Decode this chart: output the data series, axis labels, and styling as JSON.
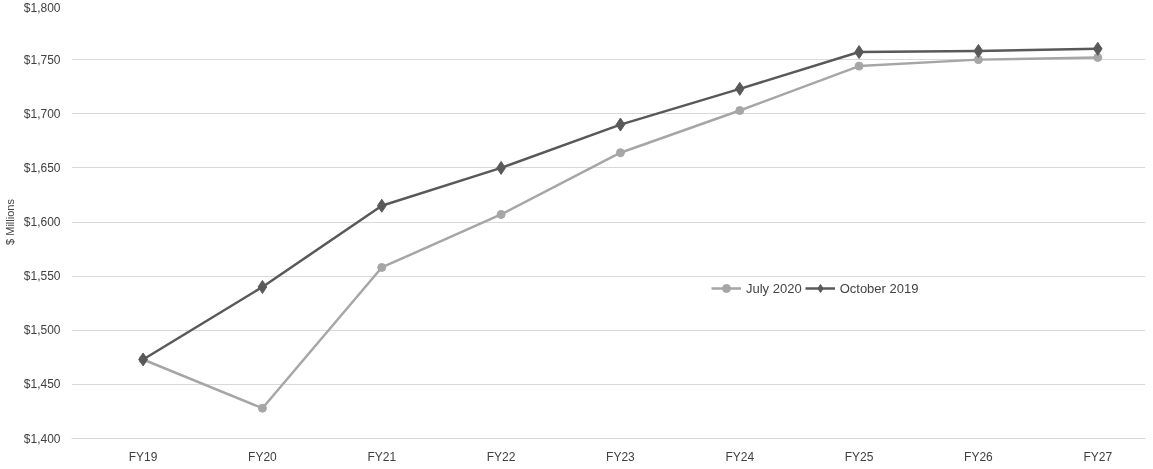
{
  "chart_data": {
    "type": "line",
    "ylabel": "$ Millions",
    "categories": [
      "FY19",
      "FY20",
      "FY21",
      "FY22",
      "FY23",
      "FY24",
      "FY25",
      "FY26",
      "FY27"
    ],
    "series": [
      {
        "name": "July 2020",
        "color": "#a6a6a6",
        "marker": "circle",
        "values": [
          1473,
          1428,
          1558,
          1607,
          1664,
          1703,
          1744,
          1750,
          1752
        ]
      },
      {
        "name": "October 2019",
        "color": "#595959",
        "marker": "diamond",
        "values": [
          1473,
          1540,
          1615,
          1650,
          1690,
          1723,
          1757,
          1758,
          1760
        ]
      }
    ],
    "ylim": [
      1400,
      1800
    ],
    "yticks": [
      {
        "value": 1400,
        "label": "$1,400"
      },
      {
        "value": 1450,
        "label": "$1,450"
      },
      {
        "value": 1500,
        "label": "$1,500"
      },
      {
        "value": 1550,
        "label": "$1,550"
      },
      {
        "value": 1600,
        "label": "$1,600"
      },
      {
        "value": 1650,
        "label": "$1,650"
      },
      {
        "value": 1700,
        "label": "$1,700"
      },
      {
        "value": 1750,
        "label": "$1,750"
      },
      {
        "value": 1800,
        "label": "$1,800"
      }
    ],
    "grid": "y",
    "legend": "right",
    "line_style": "solid"
  }
}
